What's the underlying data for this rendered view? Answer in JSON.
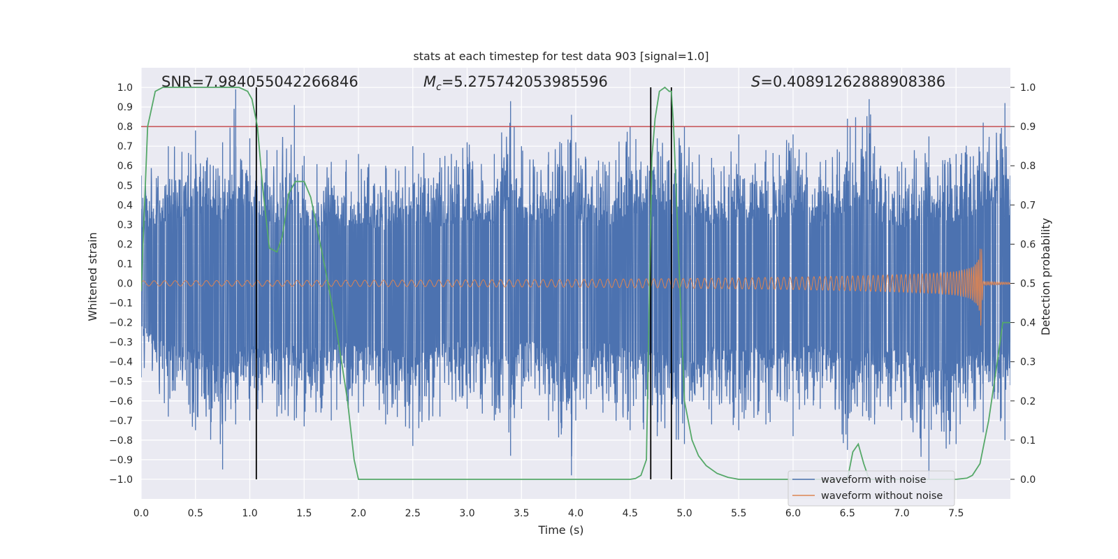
{
  "chart_data": {
    "type": "line",
    "title": "stats at each timestep for test data 903 [signal=1.0]",
    "xlabel": "Time (s)",
    "ylabel": "Whitened strain",
    "ylabel_right": "Detection probability",
    "xlim": [
      0.0,
      8.0
    ],
    "ylim": [
      -1.1,
      1.1
    ],
    "ylim_right": [
      -0.05,
      1.05
    ],
    "xticks": [
      "0.0",
      "0.5",
      "1.0",
      "1.5",
      "2.0",
      "2.5",
      "3.0",
      "3.5",
      "4.0",
      "4.5",
      "5.0",
      "5.5",
      "6.0",
      "6.5",
      "7.0",
      "7.5"
    ],
    "yticks": [
      "1.0",
      "0.9",
      "0.8",
      "0.7",
      "0.6",
      "0.5",
      "0.4",
      "0.3",
      "0.2",
      "0.1",
      "0.0",
      "−0.1",
      "−0.2",
      "−0.3",
      "−0.4",
      "−0.5",
      "−0.6",
      "−0.7",
      "−0.8",
      "−0.9",
      "−1.0"
    ],
    "yticks_right": [
      "1.0",
      "0.9",
      "0.8",
      "0.7",
      "0.6",
      "0.5",
      "0.4",
      "0.3",
      "0.2",
      "0.1",
      "0.0"
    ],
    "grid": true,
    "legend_position": "bottom-right",
    "annotations": {
      "snr": "SNR=7.984055042266846",
      "mc_symbol": "M",
      "mc_subscript": "c",
      "mc_value": "=5.275742053985596",
      "s_symbol": "S",
      "s_value": "=0.40891262888908386"
    },
    "threshold": 0.9,
    "vertical_lines_x": [
      1.06,
      4.69,
      4.88
    ],
    "series": [
      {
        "name": "waveform with noise",
        "color": "#4c72b0",
        "envelope_x": [
          0.0,
          0.25,
          0.5,
          0.75,
          0.87,
          1.0,
          1.25,
          1.41,
          1.5,
          1.75,
          2.0,
          2.25,
          2.5,
          2.75,
          3.0,
          3.25,
          3.4,
          3.5,
          3.75,
          3.96,
          4.0,
          4.25,
          4.5,
          4.75,
          5.0,
          5.25,
          5.5,
          5.75,
          6.0,
          6.25,
          6.5,
          6.7,
          6.75,
          7.0,
          7.25,
          7.5,
          7.75,
          7.95,
          8.0
        ],
        "envelope_upper": [
          0.55,
          0.7,
          0.78,
          0.72,
          0.99,
          0.74,
          0.68,
          0.91,
          0.65,
          0.62,
          0.66,
          0.6,
          0.7,
          0.64,
          0.72,
          0.66,
          0.93,
          0.7,
          0.67,
          0.86,
          0.72,
          0.62,
          0.8,
          0.74,
          0.8,
          0.64,
          0.76,
          0.68,
          0.76,
          0.62,
          0.84,
          0.94,
          0.7,
          0.62,
          0.75,
          0.66,
          0.82,
          0.92,
          0.55
        ],
        "envelope_lower": [
          -0.48,
          -0.68,
          -0.75,
          -0.95,
          -0.72,
          -0.7,
          -0.68,
          -0.7,
          -0.73,
          -0.7,
          -0.66,
          -0.72,
          -0.83,
          -0.68,
          -0.64,
          -0.7,
          -0.88,
          -0.64,
          -0.7,
          -0.98,
          -0.7,
          -0.66,
          -0.75,
          -0.78,
          -0.82,
          -0.72,
          -0.75,
          -0.72,
          -0.78,
          -0.64,
          -0.85,
          -0.7,
          -0.72,
          -0.7,
          -1.0,
          -0.82,
          -0.76,
          -0.8,
          -0.52
        ]
      },
      {
        "name": "waveform without noise",
        "color": "#dd8452",
        "envelope_x": [
          0.0,
          1.0,
          2.0,
          3.0,
          4.0,
          5.0,
          5.5,
          6.0,
          6.5,
          7.0,
          7.3,
          7.5,
          7.6,
          7.66,
          7.71,
          7.73,
          7.75,
          8.0
        ],
        "envelope_amp": [
          0.013,
          0.015,
          0.016,
          0.018,
          0.02,
          0.025,
          0.028,
          0.032,
          0.037,
          0.045,
          0.052,
          0.062,
          0.075,
          0.09,
          0.14,
          0.24,
          0.01,
          0.005
        ]
      },
      {
        "name": "",
        "color": "#55a868",
        "x": [
          0.0,
          0.06,
          0.13,
          0.2,
          0.3,
          0.5,
          0.7,
          0.9,
          0.98,
          1.02,
          1.07,
          1.12,
          1.18,
          1.25,
          1.3,
          1.36,
          1.42,
          1.5,
          1.56,
          1.62,
          1.7,
          1.8,
          1.9,
          1.96,
          2.0,
          2.5,
          3.0,
          3.5,
          4.0,
          4.5,
          4.55,
          4.6,
          4.65,
          4.7,
          4.73,
          4.77,
          4.82,
          4.86,
          4.88,
          4.9,
          4.95,
          5.0,
          5.07,
          5.13,
          5.2,
          5.3,
          5.4,
          5.5,
          6.0,
          6.5,
          6.55,
          6.6,
          6.65,
          6.7,
          7.0,
          7.5,
          7.6,
          7.65,
          7.72,
          7.8,
          7.88,
          7.93,
          8.0
        ],
        "y": [
          0.48,
          0.9,
          0.99,
          1.0,
          1.0,
          1.0,
          1.0,
          1.0,
          0.99,
          0.97,
          0.9,
          0.74,
          0.59,
          0.58,
          0.62,
          0.73,
          0.76,
          0.76,
          0.72,
          0.64,
          0.53,
          0.38,
          0.2,
          0.05,
          0.0,
          0.0,
          0.0,
          0.0,
          0.0,
          0.0,
          0.002,
          0.01,
          0.05,
          0.82,
          0.92,
          0.99,
          1.0,
          0.99,
          0.99,
          0.9,
          0.55,
          0.2,
          0.1,
          0.06,
          0.035,
          0.015,
          0.005,
          0.0,
          0.0,
          0.0,
          0.07,
          0.09,
          0.04,
          0.0,
          0.0,
          0.0,
          0.003,
          0.01,
          0.04,
          0.15,
          0.3,
          0.4,
          0.4
        ]
      }
    ]
  }
}
